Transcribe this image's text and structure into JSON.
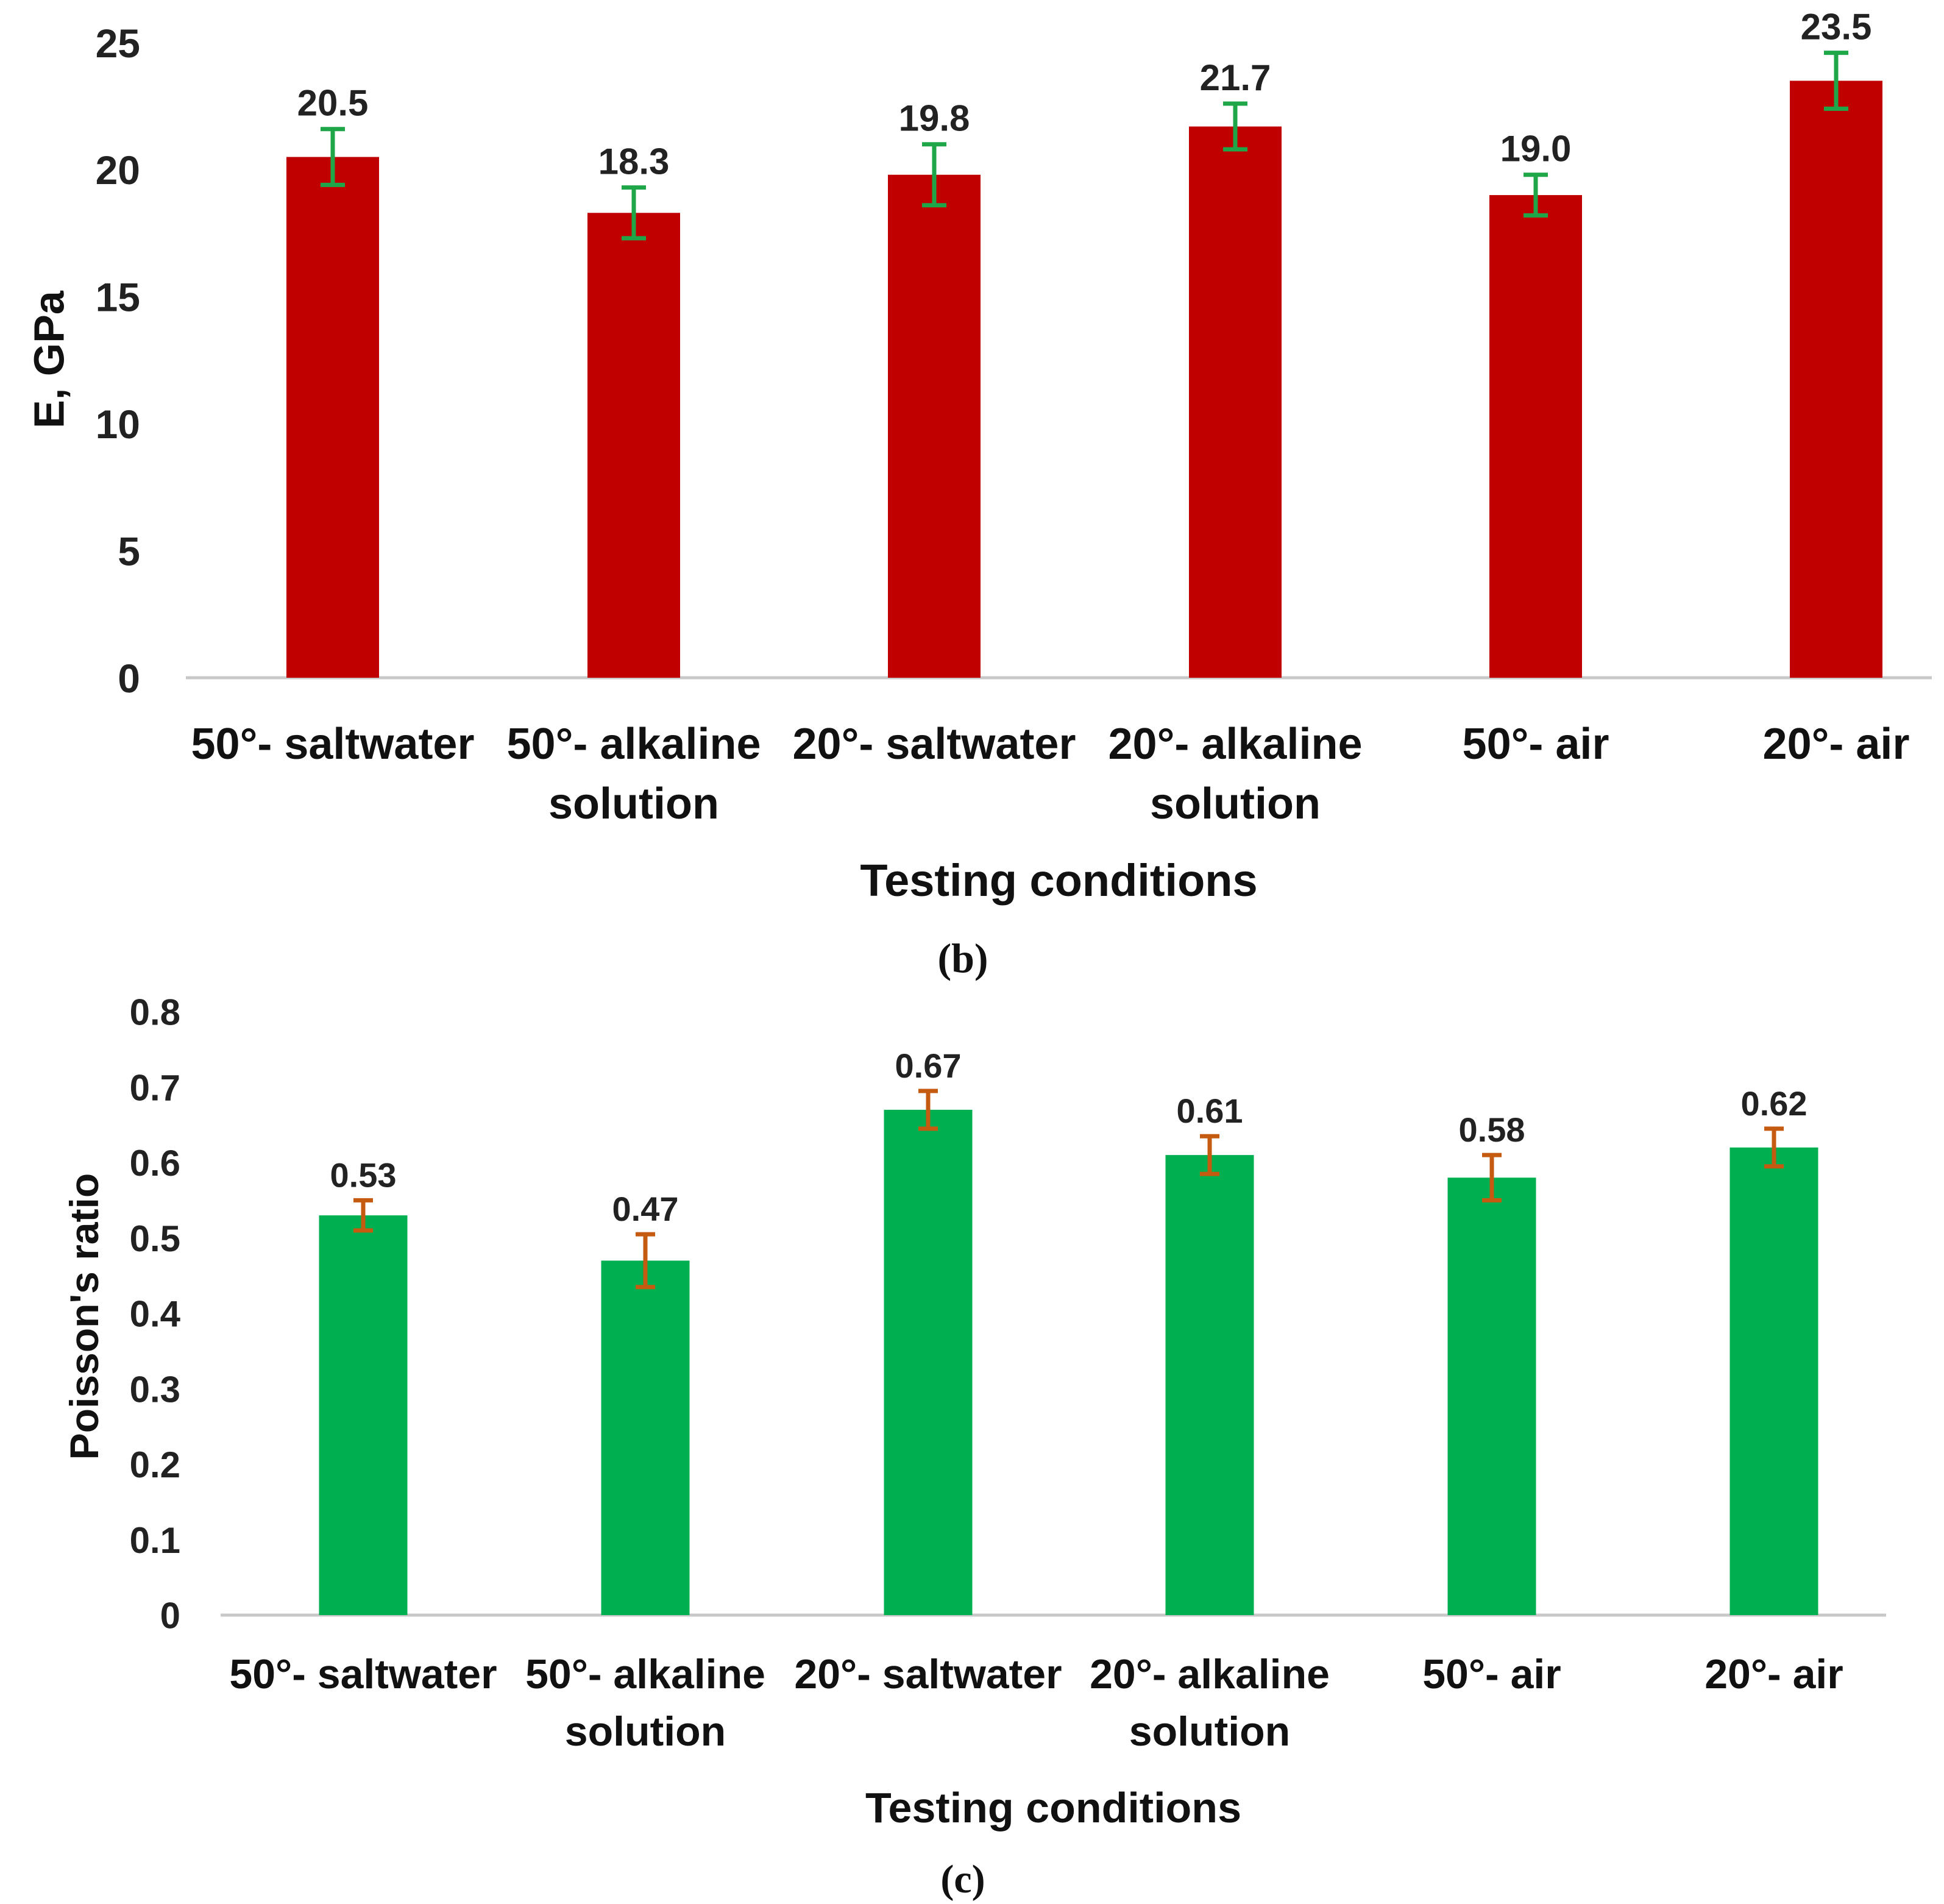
{
  "chart_data": [
    {
      "type": "bar",
      "panel_label": "(b)",
      "categories": [
        "50°- saltwater",
        "50°- alkaline solution",
        "20°- saltwater",
        "20°- alkaline solution",
        "50°- air",
        "20°- air"
      ],
      "category_lines": [
        [
          "50°- saltwater"
        ],
        [
          "50°- alkaline",
          "solution"
        ],
        [
          "20°- saltwater"
        ],
        [
          "20°- alkaline",
          "solution"
        ],
        [
          "50°- air"
        ],
        [
          "20°- air"
        ]
      ],
      "values": [
        20.5,
        18.3,
        19.8,
        21.7,
        19.0,
        23.5
      ],
      "value_labels": [
        "20.5",
        "18.3",
        "19.8",
        "21.7",
        "19.0",
        "23.5"
      ],
      "errors": [
        1.1,
        1.0,
        1.2,
        0.9,
        0.8,
        1.1
      ],
      "yticks": [
        "0",
        "5",
        "10",
        "15",
        "20",
        "25"
      ],
      "ylim": [
        0,
        25
      ],
      "xlabel": "Testing conditions",
      "ylabel": "E, GPa",
      "bar_color": "#C00000",
      "error_color": "#1FA648",
      "grid": false
    },
    {
      "type": "bar",
      "panel_label": "(c)",
      "categories": [
        "50°- saltwater",
        "50°- alkaline solution",
        "20°- saltwater",
        "20°- alkaline solution",
        "50°- air",
        "20°- air"
      ],
      "category_lines": [
        [
          "50°- saltwater"
        ],
        [
          "50°- alkaline",
          "solution"
        ],
        [
          "20°- saltwater"
        ],
        [
          "20°- alkaline",
          "solution"
        ],
        [
          "50°- air"
        ],
        [
          "20°- air"
        ]
      ],
      "values": [
        0.53,
        0.47,
        0.67,
        0.61,
        0.58,
        0.62
      ],
      "value_labels": [
        "0.53",
        "0.47",
        "0.67",
        "0.61",
        "0.58",
        "0.62"
      ],
      "errors": [
        0.02,
        0.035,
        0.025,
        0.025,
        0.03,
        0.025
      ],
      "yticks": [
        "0",
        "0.1",
        "0.2",
        "0.3",
        "0.4",
        "0.5",
        "0.6",
        "0.7",
        "0.8"
      ],
      "ylim": [
        0,
        0.8
      ],
      "xlabel": "Testing conditions",
      "ylabel": "Poisson's ratio",
      "bar_color": "#00B050",
      "error_color": "#C55A11",
      "grid": false
    }
  ]
}
